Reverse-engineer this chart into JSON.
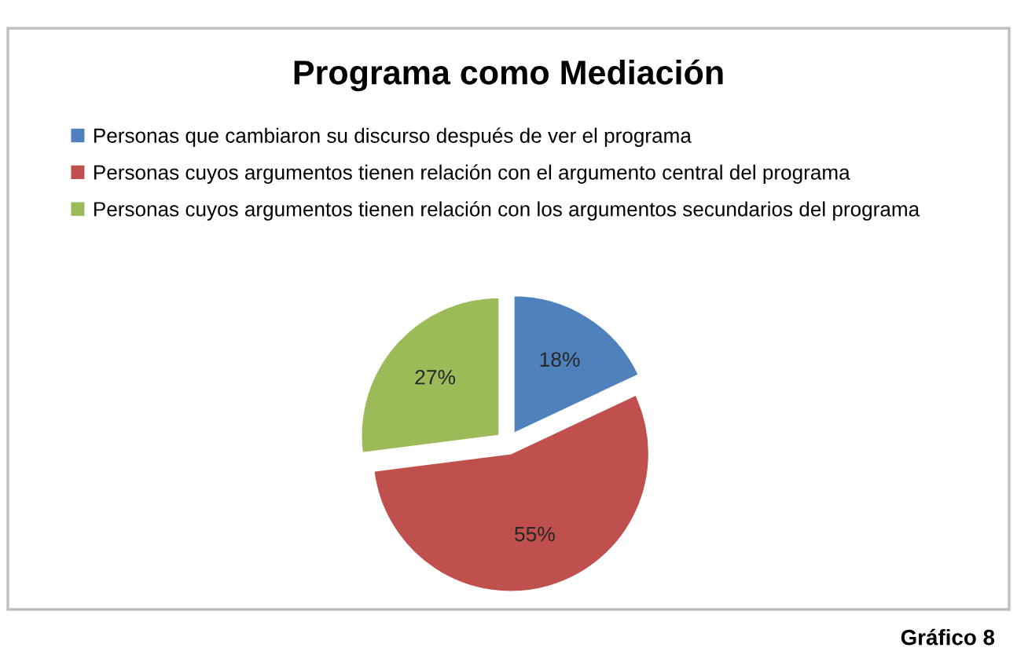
{
  "chart_data": {
    "type": "pie",
    "title": "Programa como Mediación",
    "categories": [
      "Personas que cambiaron su discurso después de ver el programa",
      "Personas cuyos argumentos tienen relación con el argumento central del programa",
      "Personas cuyos argumentos tienen relación con los argumentos secundarios del programa"
    ],
    "values": [
      18,
      55,
      27
    ],
    "colors": [
      "#4f81bd",
      "#c0504d",
      "#9bbb59"
    ],
    "value_labels": [
      "18%",
      "55%",
      "27%"
    ],
    "legend": "top",
    "annotations": [
      "Gráfico 8"
    ]
  }
}
